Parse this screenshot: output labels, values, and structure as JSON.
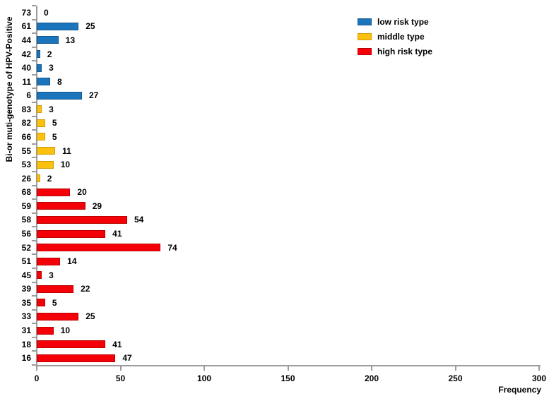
{
  "legend": {
    "items": [
      {
        "label": "low risk type",
        "color": "#1B75BC",
        "border": "#14588E"
      },
      {
        "label": "middle type",
        "color": "#FCC10F",
        "border": "#D29A00"
      },
      {
        "label": "high risk type",
        "color": "#F40009",
        "border": "#BE0000"
      }
    ]
  },
  "chart_data": {
    "type": "bar",
    "orientation": "horizontal",
    "title": "",
    "xlabel": "Frequency",
    "ylabel": "Bi-or muti-genotype of HPV-Positive",
    "xlim": [
      0,
      300
    ],
    "xticks": [
      0,
      50,
      100,
      150,
      200,
      250,
      300
    ],
    "grid": false,
    "legend_position": "top-right",
    "value_labels_shown": true,
    "categories": [
      "73",
      "61",
      "44",
      "42",
      "40",
      "11",
      "6",
      "83",
      "82",
      "66",
      "55",
      "53",
      "26",
      "68",
      "59",
      "58",
      "56",
      "52",
      "51",
      "45",
      "39",
      "35",
      "33",
      "31",
      "18",
      "16"
    ],
    "values": [
      0,
      25,
      13,
      2,
      3,
      8,
      27,
      3,
      5,
      5,
      11,
      10,
      2,
      20,
      29,
      54,
      41,
      74,
      14,
      3,
      22,
      5,
      25,
      10,
      41,
      47
    ],
    "groups": [
      "low",
      "low",
      "low",
      "low",
      "low",
      "low",
      "low",
      "middle",
      "middle",
      "middle",
      "middle",
      "middle",
      "middle",
      "high",
      "high",
      "high",
      "high",
      "high",
      "high",
      "high",
      "high",
      "high",
      "high",
      "high",
      "high",
      "high"
    ],
    "group_colors": {
      "low": "#1B75BC",
      "middle": "#FCC10F",
      "high": "#F40009"
    },
    "group_borders": {
      "low": "#14588E",
      "middle": "#D29A00",
      "high": "#BE0000"
    }
  }
}
